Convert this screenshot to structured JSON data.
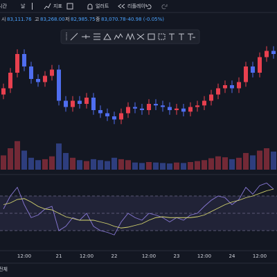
{
  "toolbar": {
    "items": [
      "시간",
      "날",
      "지표",
      "얼러트",
      "리플레이"
    ]
  },
  "legend": {
    "items": [
      {
        "label": "시",
        "value": "83,111.76"
      },
      {
        "label": "고",
        "value": "83,268.00"
      },
      {
        "label": "저",
        "value": "82,985.75"
      },
      {
        "label": "종",
        "value": "83,070.78"
      }
    ],
    "change": "-40.98 (-0.05%)"
  },
  "chart_data": {
    "type": "candlestick",
    "categories": [
      null,
      null,
      null,
      "12:00",
      null,
      null,
      null,
      null,
      "21",
      null,
      null,
      null,
      "12:00",
      null,
      null,
      null,
      "22",
      null,
      null,
      null,
      null,
      "12:00",
      null,
      null,
      null,
      "23",
      null,
      null,
      null,
      "12:00",
      null,
      null,
      null,
      "24",
      null,
      null,
      null,
      "12:00",
      null,
      null
    ],
    "open": [
      83700,
      83900,
      84400,
      85000,
      84600,
      84200,
      84100,
      84300,
      84500,
      83500,
      83300,
      83500,
      83400,
      83600,
      83200,
      83100,
      83000,
      82900,
      83100,
      83300,
      83250,
      83200,
      83400,
      83350,
      83300,
      83200,
      83250,
      83150,
      83300,
      83350,
      83500,
      83700,
      83900,
      84000,
      83900,
      84100,
      84600,
      84400,
      84900,
      85100
    ],
    "high": [
      84050,
      84550,
      85150,
      85150,
      84750,
      84350,
      84450,
      84650,
      84650,
      83650,
      83650,
      83650,
      83750,
      83750,
      83350,
      83250,
      83150,
      83250,
      83450,
      83450,
      83400,
      83550,
      83550,
      83500,
      83450,
      83400,
      83400,
      83450,
      83500,
      83650,
      83850,
      84050,
      84150,
      84150,
      84250,
      84750,
      84750,
      85050,
      85250,
      85250
    ],
    "low": [
      83550,
      83750,
      84250,
      84450,
      84050,
      83950,
      83950,
      84150,
      83350,
      83150,
      83150,
      83250,
      83250,
      83050,
      82950,
      82850,
      82750,
      82750,
      82950,
      83100,
      83050,
      83050,
      83200,
      83150,
      83050,
      83050,
      83000,
      83000,
      83150,
      83200,
      83350,
      83550,
      83750,
      83750,
      83750,
      83950,
      84250,
      84250,
      84750,
      84850
    ],
    "close": [
      83900,
      84400,
      85000,
      84600,
      84200,
      84100,
      84300,
      84500,
      83500,
      83300,
      83500,
      83400,
      83600,
      83200,
      83100,
      83000,
      82900,
      83100,
      83300,
      83250,
      83200,
      83400,
      83350,
      83300,
      83200,
      83250,
      83150,
      83300,
      83350,
      83500,
      83700,
      83900,
      84000,
      83900,
      84100,
      84600,
      84400,
      84900,
      85100,
      85000
    ],
    "up_color": "#e8404f",
    "down_color": "#4f6ef0",
    "ylim": [
      82400,
      85400
    ],
    "volume": {
      "values": [
        30,
        45,
        60,
        40,
        25,
        20,
        22,
        28,
        55,
        35,
        25,
        20,
        18,
        22,
        20,
        18,
        25,
        22,
        20,
        15,
        14,
        16,
        15,
        14,
        13,
        15,
        14,
        16,
        18,
        20,
        24,
        28,
        26,
        22,
        25,
        35,
        30,
        40,
        45,
        38
      ],
      "ylim": [
        0,
        80
      ]
    },
    "indicator": {
      "values": [
        55,
        70,
        80,
        60,
        45,
        48,
        55,
        58,
        30,
        35,
        45,
        42,
        50,
        35,
        30,
        28,
        25,
        40,
        50,
        45,
        42,
        50,
        48,
        45,
        40,
        45,
        42,
        48,
        50,
        58,
        65,
        70,
        68,
        60,
        66,
        80,
        72,
        82,
        85,
        78
      ],
      "signal": [
        60,
        62,
        66,
        67,
        63,
        58,
        55,
        54,
        50,
        46,
        44,
        42,
        42,
        42,
        40,
        38,
        35,
        33,
        34,
        36,
        38,
        42,
        45,
        46,
        45,
        45,
        45,
        45,
        46,
        48,
        52,
        56,
        60,
        63,
        65,
        68,
        70,
        73,
        76,
        78
      ],
      "ylim": [
        10,
        90
      ],
      "bands": [
        70,
        50,
        30
      ],
      "color": "#8a7ad8",
      "signal_color": "#d8d870"
    }
  },
  "footer": {
    "range": "전체"
  }
}
